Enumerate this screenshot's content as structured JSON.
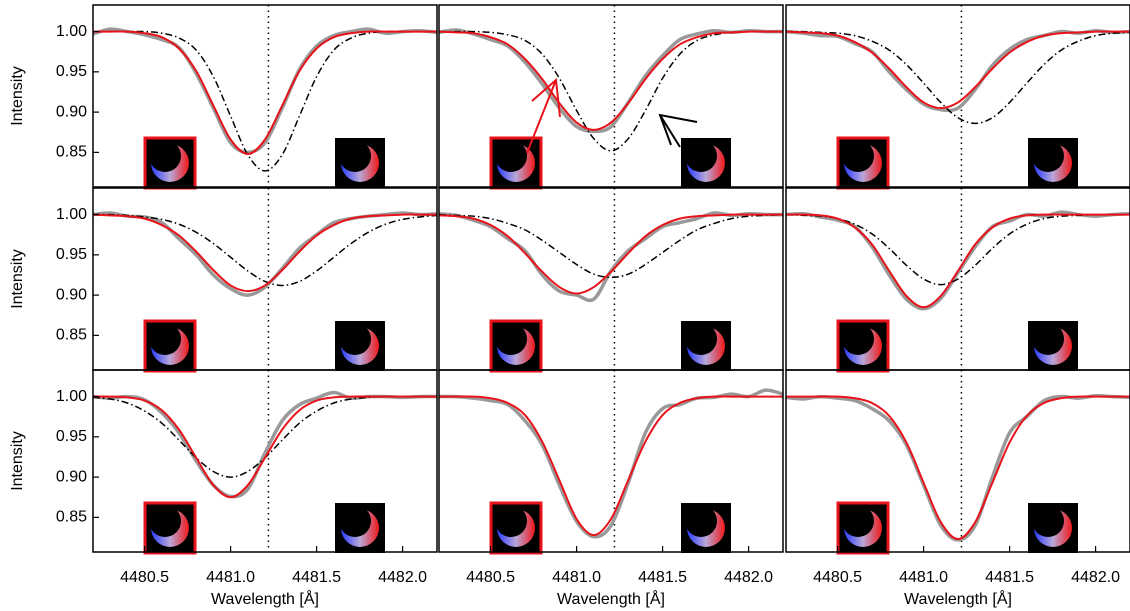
{
  "chart_data": [
    {
      "type": "line",
      "ylabel": "Intensity",
      "xlim": [
        4480.2,
        4482.2
      ],
      "ylim": [
        0.807,
        1.033
      ],
      "yticks": [
        0.85,
        {
          "value": 0.9,
          "label": "0.90"
        },
        0.95,
        {
          "value": 1.0,
          "label": "1.00"
        }
      ],
      "vline": 4481.22,
      "x": [
        4480.2,
        4480.3,
        4480.4,
        4480.5,
        4480.6,
        4480.7,
        4480.8,
        4480.9,
        4481.0,
        4481.1,
        4481.2,
        4481.3,
        4481.4,
        4481.5,
        4481.6,
        4481.7,
        4481.8,
        4481.9,
        4482.0,
        4482.1,
        4482.2
      ],
      "series": [
        {
          "color": "#999999",
          "style": "solid",
          "width": 3.5,
          "values": [
            0.997,
            1.003,
            1.0,
            0.996,
            0.99,
            0.98,
            0.948,
            0.905,
            0.862,
            0.85,
            0.862,
            0.905,
            0.953,
            0.982,
            0.995,
            1.0,
            1.003,
            0.998,
            1.0,
            1.001,
            0.999
          ]
        },
        {
          "color": "#000000",
          "style": "dashdot",
          "width": 1.5,
          "values": [
            1.0,
            1.0,
            1.0,
            1.0,
            0.998,
            0.992,
            0.977,
            0.944,
            0.895,
            0.847,
            0.827,
            0.847,
            0.895,
            0.944,
            0.977,
            0.992,
            0.998,
            1.0,
            1.0,
            1.0,
            1.0
          ]
        },
        {
          "color": "#e8121a",
          "style": "solid",
          "width": 2,
          "values": [
            1.0,
            1.0,
            1.0,
            0.998,
            0.993,
            0.979,
            0.951,
            0.908,
            0.866,
            0.848,
            0.866,
            0.908,
            0.951,
            0.979,
            0.993,
            0.998,
            1.0,
            1.0,
            1.0,
            1.0,
            1.0
          ]
        }
      ]
    },
    {
      "type": "line",
      "xlim": [
        4480.2,
        4482.2
      ],
      "ylim": [
        0.807,
        1.033
      ],
      "vline": 4481.22,
      "x": [
        4480.2,
        4480.3,
        4480.4,
        4480.5,
        4480.6,
        4480.7,
        4480.8,
        4480.9,
        4481.0,
        4481.1,
        4481.2,
        4481.3,
        4481.4,
        4481.5,
        4481.6,
        4481.7,
        4481.8,
        4481.9,
        4482.0,
        4482.1,
        4482.2
      ],
      "series": [
        {
          "color": "#999999",
          "style": "solid",
          "width": 3.5,
          "values": [
            0.999,
            1.002,
            0.997,
            0.99,
            0.982,
            0.962,
            0.935,
            0.905,
            0.882,
            0.876,
            0.882,
            0.912,
            0.945,
            0.97,
            0.99,
            0.997,
            1.001,
            0.999,
            1.001,
            1.0,
            1.0
          ]
        },
        {
          "color": "#000000",
          "style": "dashdot",
          "width": 1.5,
          "values": [
            1.0,
            1.0,
            1.0,
            0.999,
            0.996,
            0.989,
            0.972,
            0.942,
            0.902,
            0.867,
            0.852,
            0.867,
            0.902,
            0.942,
            0.972,
            0.989,
            0.996,
            0.999,
            1.0,
            1.0,
            1.0
          ]
        },
        {
          "color": "#e8121a",
          "style": "solid",
          "width": 2,
          "values": [
            1.0,
            0.999,
            0.998,
            0.993,
            0.984,
            0.966,
            0.941,
            0.911,
            0.887,
            0.878,
            0.887,
            0.911,
            0.941,
            0.966,
            0.984,
            0.993,
            0.998,
            0.999,
            1.0,
            1.0,
            1.0
          ]
        }
      ]
    },
    {
      "type": "line",
      "xlim": [
        4480.2,
        4482.2
      ],
      "ylim": [
        0.807,
        1.033
      ],
      "vline": 4481.22,
      "x": [
        4480.2,
        4480.3,
        4480.4,
        4480.5,
        4480.6,
        4480.7,
        4480.8,
        4480.9,
        4481.0,
        4481.1,
        4481.2,
        4481.3,
        4481.4,
        4481.5,
        4481.6,
        4481.7,
        4481.8,
        4481.9,
        4482.0,
        4482.1,
        4482.2
      ],
      "series": [
        {
          "color": "#999999",
          "style": "solid",
          "width": 3.5,
          "values": [
            1.0,
            0.998,
            0.995,
            0.994,
            0.985,
            0.975,
            0.95,
            0.928,
            0.91,
            0.903,
            0.905,
            0.928,
            0.958,
            0.978,
            0.99,
            0.995,
            1.0,
            0.998,
            1.001,
            0.999,
            1.0
          ]
        },
        {
          "color": "#000000",
          "style": "dashdot",
          "width": 1.5,
          "values": [
            1.0,
            1.0,
            0.999,
            0.998,
            0.995,
            0.988,
            0.977,
            0.959,
            0.936,
            0.912,
            0.893,
            0.886,
            0.893,
            0.912,
            0.936,
            0.959,
            0.977,
            0.988,
            0.995,
            0.998,
            0.999
          ]
        },
        {
          "color": "#e8121a",
          "style": "solid",
          "width": 2,
          "values": [
            1.0,
            0.999,
            0.998,
            0.995,
            0.987,
            0.974,
            0.954,
            0.931,
            0.912,
            0.905,
            0.912,
            0.931,
            0.954,
            0.974,
            0.987,
            0.995,
            0.998,
            0.999,
            1.0,
            1.0,
            1.0
          ]
        }
      ]
    },
    {
      "type": "line",
      "ylabel": "Intensity",
      "xlim": [
        4480.2,
        4482.2
      ],
      "ylim": [
        0.807,
        1.033
      ],
      "yticks": [
        0.85,
        {
          "value": 0.9,
          "label": "0.90"
        },
        0.95,
        {
          "value": 1.0,
          "label": "1.00"
        }
      ],
      "vline": 4481.22,
      "x": [
        4480.2,
        4480.3,
        4480.4,
        4480.5,
        4480.6,
        4480.7,
        4480.8,
        4480.9,
        4481.0,
        4481.1,
        4481.2,
        4481.3,
        4481.4,
        4481.5,
        4481.6,
        4481.7,
        4481.8,
        4481.9,
        4482.0,
        4482.1,
        4482.2
      ],
      "series": [
        {
          "color": "#999999",
          "style": "solid",
          "width": 3.5,
          "values": [
            1.0,
            1.002,
            0.998,
            0.997,
            0.99,
            0.97,
            0.95,
            0.925,
            0.908,
            0.9,
            0.91,
            0.933,
            0.958,
            0.975,
            0.99,
            0.995,
            0.998,
            1.0,
            1.002,
            1.0,
            1.001
          ]
        },
        {
          "color": "#000000",
          "style": "dashdot",
          "width": 1.5,
          "values": [
            1.0,
            1.0,
            0.999,
            0.997,
            0.994,
            0.988,
            0.978,
            0.964,
            0.947,
            0.93,
            0.917,
            0.912,
            0.917,
            0.93,
            0.947,
            0.964,
            0.978,
            0.988,
            0.994,
            0.997,
            0.999
          ]
        },
        {
          "color": "#e8121a",
          "style": "solid",
          "width": 2,
          "values": [
            1.0,
            0.999,
            0.998,
            0.995,
            0.987,
            0.974,
            0.954,
            0.931,
            0.912,
            0.905,
            0.912,
            0.931,
            0.954,
            0.974,
            0.987,
            0.995,
            0.998,
            0.999,
            1.0,
            1.0,
            1.0
          ]
        }
      ]
    },
    {
      "type": "line",
      "xlim": [
        4480.2,
        4482.2
      ],
      "ylim": [
        0.807,
        1.033
      ],
      "vline": 4481.22,
      "x": [
        4480.2,
        4480.3,
        4480.4,
        4480.5,
        4480.6,
        4480.7,
        4480.8,
        4480.9,
        4481.0,
        4481.1,
        4481.2,
        4481.3,
        4481.4,
        4481.5,
        4481.6,
        4481.7,
        4481.8,
        4481.9,
        4482.0,
        4482.1,
        4482.2
      ],
      "series": [
        {
          "color": "#999999",
          "style": "solid",
          "width": 3.5,
          "values": [
            1.001,
            0.999,
            0.993,
            0.985,
            0.97,
            0.955,
            0.925,
            0.905,
            0.9,
            0.895,
            0.93,
            0.955,
            0.97,
            0.985,
            0.99,
            0.995,
            1.002,
            0.999,
            1.001,
            1.0,
            1.0
          ]
        },
        {
          "color": "#000000",
          "style": "dashdot",
          "width": 1.5,
          "values": [
            1.0,
            0.999,
            0.998,
            0.995,
            0.989,
            0.981,
            0.968,
            0.953,
            0.938,
            0.926,
            0.922,
            0.926,
            0.938,
            0.953,
            0.968,
            0.981,
            0.989,
            0.995,
            0.998,
            0.999,
            1.0
          ]
        },
        {
          "color": "#e8121a",
          "style": "solid",
          "width": 2,
          "values": [
            0.999,
            0.998,
            0.995,
            0.987,
            0.973,
            0.952,
            0.929,
            0.91,
            0.902,
            0.91,
            0.929,
            0.952,
            0.973,
            0.987,
            0.995,
            0.998,
            0.999,
            1.0,
            1.0,
            1.0,
            1.0
          ]
        }
      ]
    },
    {
      "type": "line",
      "xlim": [
        4480.2,
        4482.2
      ],
      "ylim": [
        0.807,
        1.033
      ],
      "vline": 4481.22,
      "x": [
        4480.2,
        4480.3,
        4480.4,
        4480.5,
        4480.6,
        4480.7,
        4480.8,
        4480.9,
        4481.0,
        4481.1,
        4481.2,
        4481.3,
        4481.4,
        4481.5,
        4481.6,
        4481.7,
        4481.8,
        4481.9,
        4482.0,
        4482.1,
        4482.2
      ],
      "series": [
        {
          "color": "#999999",
          "style": "solid",
          "width": 3.5,
          "values": [
            1.0,
            1.001,
            0.997,
            0.993,
            0.985,
            0.96,
            0.925,
            0.895,
            0.883,
            0.896,
            0.928,
            0.96,
            0.985,
            0.992,
            1.0,
            0.998,
            1.003,
            1.0,
            0.998,
            1.0,
            1.001
          ]
        },
        {
          "color": "#000000",
          "style": "dashdot",
          "width": 1.5,
          "values": [
            1.0,
            0.999,
            0.998,
            0.995,
            0.988,
            0.976,
            0.958,
            0.937,
            0.92,
            0.913,
            0.92,
            0.937,
            0.958,
            0.976,
            0.988,
            0.995,
            0.998,
            0.999,
            1.0,
            1.0,
            1.0
          ]
        },
        {
          "color": "#e8121a",
          "style": "solid",
          "width": 2,
          "values": [
            1.0,
            1.0,
            0.999,
            0.995,
            0.984,
            0.963,
            0.93,
            0.899,
            0.885,
            0.899,
            0.93,
            0.963,
            0.984,
            0.995,
            0.999,
            1.0,
            1.0,
            1.0,
            1.0,
            1.0,
            1.0
          ]
        }
      ]
    },
    {
      "type": "line",
      "ylabel": "Intensity",
      "xlabel": "Wavelength [Å]",
      "xlim": [
        4480.2,
        4482.2
      ],
      "ylim": [
        0.807,
        1.033
      ],
      "yticks": [
        0.85,
        {
          "value": 0.9,
          "label": "0.90"
        },
        0.95,
        {
          "value": 1.0,
          "label": "1.00"
        }
      ],
      "xticks": [
        4480.5,
        {
          "value": 4481,
          "label": "4481.0"
        },
        4481.5,
        {
          "value": 4482,
          "label": "4482.0"
        }
      ],
      "vline": 4481.22,
      "x": [
        4480.2,
        4480.3,
        4480.4,
        4480.5,
        4480.6,
        4480.7,
        4480.8,
        4480.9,
        4481.0,
        4481.1,
        4481.2,
        4481.3,
        4481.4,
        4481.5,
        4481.6,
        4481.7,
        4481.8,
        4481.9,
        4482.0,
        4482.1,
        4482.2
      ],
      "series": [
        {
          "color": "#999999",
          "style": "solid",
          "width": 3.5,
          "values": [
            1.0,
            0.998,
            1.0,
            0.996,
            0.98,
            0.955,
            0.92,
            0.89,
            0.876,
            0.885,
            0.93,
            0.97,
            0.99,
            0.998,
            1.005,
            0.998,
            1.0,
            1.0,
            0.999,
            1.0,
            1.0
          ]
        },
        {
          "color": "#000000",
          "style": "dashdot",
          "width": 1.5,
          "values": [
            0.999,
            0.997,
            0.992,
            0.982,
            0.967,
            0.946,
            0.924,
            0.907,
            0.9,
            0.907,
            0.924,
            0.946,
            0.967,
            0.982,
            0.992,
            0.997,
            0.999,
            1.0,
            1.0,
            1.0,
            1.0
          ]
        },
        {
          "color": "#e8121a",
          "style": "solid",
          "width": 2,
          "values": [
            1.0,
            1.0,
            0.999,
            0.995,
            0.983,
            0.959,
            0.924,
            0.89,
            0.875,
            0.89,
            0.924,
            0.959,
            0.983,
            0.995,
            0.999,
            1.0,
            1.0,
            1.0,
            1.0,
            1.0,
            1.0
          ]
        }
      ]
    },
    {
      "type": "line",
      "xlabel": "Wavelength [Å]",
      "xlim": [
        4480.2,
        4482.2
      ],
      "ylim": [
        0.807,
        1.033
      ],
      "xticks": [
        4480.5,
        {
          "value": 4481,
          "label": "4481.0"
        },
        4481.5,
        {
          "value": 4482,
          "label": "4482.0"
        }
      ],
      "vline": 4481.22,
      "x": [
        4480.2,
        4480.3,
        4480.4,
        4480.5,
        4480.6,
        4480.7,
        4480.8,
        4480.9,
        4481.0,
        4481.1,
        4481.2,
        4481.3,
        4481.4,
        4481.5,
        4481.6,
        4481.7,
        4481.8,
        4481.9,
        4482.0,
        4482.1,
        4482.2
      ],
      "series": [
        {
          "color": "#999999",
          "style": "solid",
          "width": 3.5,
          "values": [
            1.0,
            1.0,
            0.998,
            0.995,
            0.99,
            0.97,
            0.94,
            0.89,
            0.845,
            0.826,
            0.84,
            0.893,
            0.955,
            0.985,
            0.99,
            0.998,
            0.999,
            1.003,
            1.0,
            1.008,
            1.003
          ]
        },
        {
          "color": "#e8121a",
          "style": "solid",
          "width": 2,
          "values": [
            1.0,
            1.0,
            1.0,
            0.998,
            0.992,
            0.977,
            0.944,
            0.896,
            0.848,
            0.828,
            0.848,
            0.896,
            0.944,
            0.977,
            0.992,
            0.998,
            1.0,
            1.0,
            1.0,
            1.0,
            1.0
          ]
        }
      ]
    },
    {
      "type": "line",
      "xlabel": "Wavelength [Å]",
      "xlim": [
        4480.2,
        4482.2
      ],
      "ylim": [
        0.807,
        1.033
      ],
      "xticks": [
        4480.5,
        {
          "value": 4481,
          "label": "4481.0"
        },
        4481.5,
        {
          "value": 4482,
          "label": "4482.0"
        }
      ],
      "vline": 4481.22,
      "x": [
        4480.2,
        4480.3,
        4480.4,
        4480.5,
        4480.6,
        4480.7,
        4480.8,
        4480.9,
        4481.0,
        4481.1,
        4481.2,
        4481.3,
        4481.4,
        4481.5,
        4481.6,
        4481.7,
        4481.8,
        4481.9,
        4482.0,
        4482.1,
        4482.2
      ],
      "series": [
        {
          "color": "#999999",
          "style": "solid",
          "width": 3.5,
          "values": [
            0.999,
            0.997,
            1.0,
            0.998,
            0.995,
            0.985,
            0.97,
            0.94,
            0.89,
            0.84,
            0.822,
            0.84,
            0.9,
            0.955,
            0.975,
            0.995,
            1.0,
            0.998,
            1.001,
            1.0,
            0.999
          ]
        },
        {
          "color": "#e8121a",
          "style": "solid",
          "width": 2,
          "values": [
            1.0,
            1.0,
            1.0,
            1.0,
            0.998,
            0.992,
            0.976,
            0.943,
            0.893,
            0.844,
            0.823,
            0.844,
            0.893,
            0.943,
            0.976,
            0.992,
            0.998,
            1.0,
            1.0,
            1.0,
            1.0
          ]
        }
      ]
    }
  ]
}
